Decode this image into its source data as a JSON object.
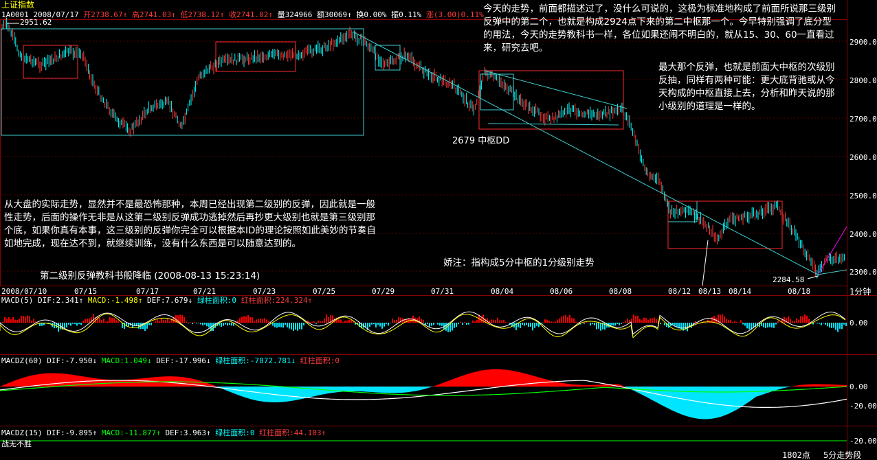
{
  "header": {
    "index_name": "上证指数",
    "code_date": "1A0001 2008/07/17",
    "open": "开2738.67↑",
    "high": "高2741.03↑",
    "low": "低2738.12↑",
    "close": "收2741.02↑",
    "volume": "量324966",
    "amount": "额30069↑",
    "turnover": "换0.00%",
    "amplitude": "振0.11%",
    "change": "涨(3.00)0.11%"
  },
  "price_axis": [
    "2900.00",
    "2800.00",
    "2700.00",
    "2600.00",
    "2500.00",
    "2400.00",
    "2300.00"
  ],
  "price_marks": {
    "high": "2951.62",
    "low": "2284.58"
  },
  "labels": {
    "center_dd": "2679 中枢DD",
    "note_small": "娇注：指构成5分中枢的1分级别走势"
  },
  "notes": {
    "top_right": "今天的走势，前面都描述过了，没什么可说的，这极为标准地构成了前面所说那三级别反弹中的第二个，也就是构成2924点下来的第二中枢那一个。今早特别强调了底分型的用法，今天的走势教科书一样，各位如果还闹不明白的，就从15、30、60一直看过来，研究去吧。",
    "right_mid": "最大那个反弹，也就是前面大中枢的次级别反抽，同样有两种可能：更大底背驰或从今天构成的中枢直接上去，分析和昨天说的那小级别的道理是一样的。",
    "left_mid": "从大盘的实际走势，显然并不是最恐怖那种，本周已经出现第二级别的反弹，因此就是一般性走势，后面的操作无非是从这第二级别反弹成功逃掉然后再抄更大级别也就是第三级别那个底，如果你真有本事，这三级别的反弹你完全可以根据本ID的理论按照如此美妙的节奏自如地完成，现在达不到，就继续训练，没有什么东西是可以随意达到的。",
    "title_line": "第二级别反弹教科书般降临  (2008-08-13 15:23:14)"
  },
  "date_axis": [
    "2008/07/10",
    "07/15",
    "07/17",
    "07/21",
    "07/23",
    "07/25",
    "07/29",
    "07/31",
    "08/04",
    "08/06",
    "08/08",
    "08/12",
    "08/13",
    "08/14",
    "08/18"
  ],
  "period": "1分钟",
  "macd1": {
    "name": "MACD(5)",
    "dif": "DIF:2.341↑",
    "macd": "MACD:-1.498↑",
    "def": "DEF:7.679↓",
    "green_area": "绿柱面积:0",
    "red_area": "红柱面积:224.324↑",
    "axis": "0.00"
  },
  "macd2": {
    "name": "MACDZ(60)",
    "dif": "DIF:-7.950↓",
    "macd": "MACD:1.049↓",
    "def": "DEF:-17.996↓",
    "green_area": "绿柱面积:-7872.781↓",
    "red_area": "红柱面积:0",
    "axis_zero": "0.00",
    "axis_neg": "-20.00"
  },
  "macd3": {
    "name": "MACDZ(15)",
    "dif": "DIF:-9.895↑",
    "macd": "MACD:-11.877↑",
    "def": "DEF:3.963↑",
    "green_area": "绿柱面积:0",
    "red_area": "红柱面积:44.103↑",
    "axis": "-20.00"
  },
  "footer": {
    "left": "战无不胜",
    "points": "1802点",
    "mode": "5分走势段"
  },
  "colors": {
    "up": "#ff3b3b",
    "down": "#00ffff",
    "box_cyan": "#3fd0d0",
    "box_red": "#ff2a2a",
    "grid": "#8b0000"
  }
}
